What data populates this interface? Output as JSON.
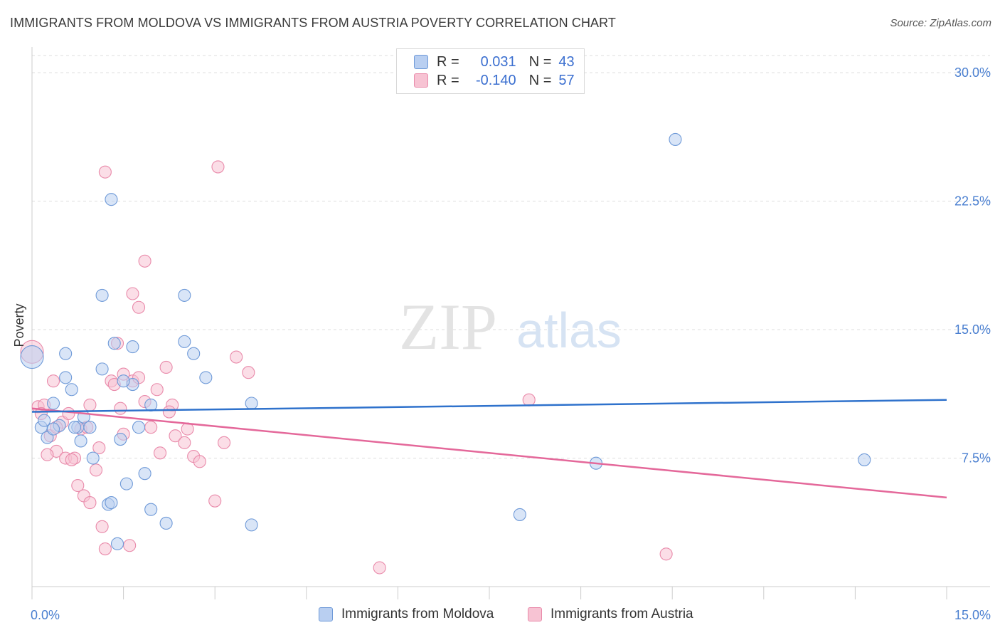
{
  "header": {
    "title": "IMMIGRANTS FROM MOLDOVA VS IMMIGRANTS FROM AUSTRIA POVERTY CORRELATION CHART",
    "source": "Source: ZipAtlas.com"
  },
  "watermark": {
    "zip": "ZIP",
    "atlas": "atlas"
  },
  "legend": {
    "rows": [
      {
        "r_label": "R =",
        "r_value": "0.031",
        "n_label": "N =",
        "n_value": "43"
      },
      {
        "r_label": "R =",
        "r_value": "-0.140",
        "n_label": "N =",
        "n_value": "57"
      }
    ]
  },
  "bottom_legend": {
    "series_a": "Immigrants from Moldova",
    "series_b": "Immigrants from Austria"
  },
  "colors": {
    "blue_fill": "#b9cff1",
    "blue_stroke": "#6f9ad8",
    "blue_line": "#2f72cc",
    "pink_fill": "#f7c3d3",
    "pink_stroke": "#e98aaa",
    "pink_line": "#e4689a",
    "axis_text": "#4a7fd0",
    "grid": "#dddddd"
  },
  "chart_data": {
    "type": "scatter",
    "title": "IMMIGRANTS FROM MOLDOVA VS IMMIGRANTS FROM AUSTRIA POVERTY CORRELATION CHART",
    "xlabel": "",
    "ylabel": "Poverty",
    "xlim": [
      0,
      15
    ],
    "ylim": [
      0,
      31
    ],
    "x_tick_labels": [
      "0.0%",
      "15.0%"
    ],
    "y_ticks": [
      7.5,
      15.0,
      22.5,
      30.0
    ],
    "y_tick_labels": [
      "7.5%",
      "15.0%",
      "22.5%",
      "30.0%"
    ],
    "grid": true,
    "legend_position": "top-center",
    "series": [
      {
        "name": "Immigrants from Moldova",
        "color": "#6f9ad8",
        "trend": {
          "x": [
            0,
            15
          ],
          "y": [
            10.2,
            10.9
          ]
        },
        "points": [
          [
            0.0,
            13.4
          ],
          [
            0.15,
            9.3
          ],
          [
            0.25,
            8.7
          ],
          [
            0.35,
            10.7
          ],
          [
            0.2,
            9.7
          ],
          [
            0.45,
            9.4
          ],
          [
            0.55,
            12.2
          ],
          [
            0.65,
            11.5
          ],
          [
            0.75,
            9.3
          ],
          [
            0.85,
            9.9
          ],
          [
            0.95,
            9.3
          ],
          [
            0.8,
            8.5
          ],
          [
            0.55,
            13.6
          ],
          [
            1.0,
            7.5
          ],
          [
            1.15,
            12.7
          ],
          [
            1.25,
            4.8
          ],
          [
            1.3,
            4.9
          ],
          [
            1.4,
            2.5
          ],
          [
            1.45,
            8.6
          ],
          [
            1.55,
            6.0
          ],
          [
            1.65,
            11.8
          ],
          [
            1.75,
            9.3
          ],
          [
            1.85,
            6.6
          ],
          [
            1.95,
            10.6
          ],
          [
            2.2,
            3.7
          ],
          [
            2.5,
            14.3
          ],
          [
            2.65,
            13.6
          ],
          [
            2.85,
            12.2
          ],
          [
            3.6,
            3.6
          ],
          [
            1.3,
            22.6
          ],
          [
            1.15,
            17.0
          ],
          [
            1.35,
            14.2
          ],
          [
            1.5,
            12.0
          ],
          [
            2.5,
            17.0
          ],
          [
            1.65,
            14.0
          ],
          [
            0.35,
            9.2
          ],
          [
            1.95,
            4.5
          ],
          [
            3.6,
            10.7
          ],
          [
            8.0,
            4.2
          ],
          [
            9.25,
            7.2
          ],
          [
            10.55,
            26.1
          ],
          [
            13.65,
            7.4
          ],
          [
            0.7,
            9.3
          ]
        ]
      },
      {
        "name": "Immigrants from Austria",
        "color": "#e98aaa",
        "trend": {
          "x": [
            0,
            15
          ],
          "y": [
            10.4,
            5.2
          ]
        },
        "points": [
          [
            0.0,
            13.7
          ],
          [
            0.1,
            10.5
          ],
          [
            0.2,
            10.6
          ],
          [
            0.3,
            8.8
          ],
          [
            0.35,
            12.0
          ],
          [
            0.5,
            9.6
          ],
          [
            0.6,
            10.1
          ],
          [
            0.4,
            7.9
          ],
          [
            0.55,
            7.5
          ],
          [
            0.7,
            7.5
          ],
          [
            0.8,
            9.2
          ],
          [
            0.95,
            10.6
          ],
          [
            0.75,
            5.9
          ],
          [
            0.85,
            5.3
          ],
          [
            0.95,
            4.9
          ],
          [
            1.05,
            6.8
          ],
          [
            1.1,
            8.1
          ],
          [
            1.15,
            3.5
          ],
          [
            1.2,
            2.2
          ],
          [
            1.3,
            12.0
          ],
          [
            1.4,
            14.2
          ],
          [
            1.5,
            12.4
          ],
          [
            1.6,
            2.4
          ],
          [
            1.65,
            12.0
          ],
          [
            1.75,
            12.2
          ],
          [
            1.85,
            10.8
          ],
          [
            1.95,
            9.3
          ],
          [
            2.05,
            11.5
          ],
          [
            2.1,
            7.8
          ],
          [
            2.2,
            12.8
          ],
          [
            2.3,
            10.6
          ],
          [
            2.35,
            8.8
          ],
          [
            2.5,
            8.4
          ],
          [
            2.55,
            9.2
          ],
          [
            2.65,
            7.6
          ],
          [
            2.75,
            7.3
          ],
          [
            3.0,
            5.0
          ],
          [
            3.15,
            8.4
          ],
          [
            3.35,
            13.4
          ],
          [
            3.55,
            12.5
          ],
          [
            1.2,
            24.2
          ],
          [
            3.05,
            24.5
          ],
          [
            1.85,
            19.0
          ],
          [
            1.65,
            17.1
          ],
          [
            1.75,
            16.3
          ],
          [
            1.5,
            8.9
          ],
          [
            0.25,
            7.7
          ],
          [
            0.4,
            9.3
          ],
          [
            0.65,
            7.4
          ],
          [
            0.15,
            10.1
          ],
          [
            0.9,
            9.3
          ],
          [
            1.35,
            11.8
          ],
          [
            1.45,
            10.4
          ],
          [
            2.25,
            10.2
          ],
          [
            5.7,
            1.1
          ],
          [
            8.15,
            10.9
          ],
          [
            10.4,
            1.9
          ]
        ]
      }
    ]
  }
}
